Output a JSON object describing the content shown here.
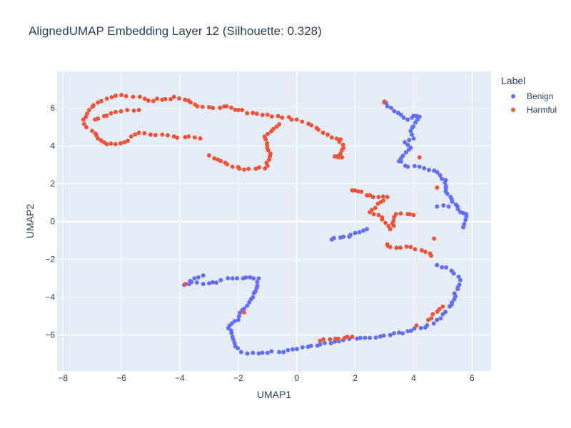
{
  "chart_data": {
    "type": "scatter",
    "title": "AlignedUMAP Embedding Layer 12 (Silhouette: 0.328)",
    "xlabel": "UMAP1",
    "ylabel": "UMAP2",
    "xlim": [
      -8.2,
      6.65
    ],
    "ylim": [
      -7.9,
      7.95
    ],
    "xticks": [
      -8,
      -6,
      -4,
      -2,
      0,
      2,
      4,
      6
    ],
    "yticks": [
      -6,
      -4,
      -2,
      0,
      2,
      4,
      6
    ],
    "grid": true,
    "legend_title": "Label",
    "legend_position": "right",
    "series": [
      {
        "name": "Benign",
        "color": "#636efa",
        "path": [
          [
            3.0,
            6.35
          ],
          [
            3.1,
            6.1
          ],
          [
            3.8,
            5.4
          ],
          [
            4.0,
            5.6
          ],
          [
            4.2,
            5.55
          ],
          [
            3.9,
            4.8
          ],
          [
            4.0,
            4.4
          ],
          [
            3.7,
            4.2
          ],
          [
            3.9,
            3.9
          ],
          [
            3.5,
            3.2
          ],
          [
            3.8,
            2.9
          ],
          [
            4.2,
            2.9
          ],
          [
            4.7,
            2.7
          ],
          [
            5.1,
            2.2
          ],
          [
            5.1,
            1.6
          ],
          [
            5.3,
            1.2
          ],
          [
            5.6,
            0.5
          ],
          [
            5.8,
            0.4
          ],
          [
            5.7,
            -0.3
          ],
          [
            4.8,
            0.8
          ],
          [
            5.2,
            0.8
          ],
          [
            1.2,
            -0.95
          ],
          [
            1.6,
            -0.8
          ],
          [
            2.0,
            -0.6
          ],
          [
            2.4,
            -0.4
          ],
          [
            4.8,
            -2.3
          ],
          [
            5.3,
            -2.6
          ],
          [
            5.6,
            -3.1
          ],
          [
            5.4,
            -3.8
          ],
          [
            5.3,
            -4.4
          ],
          [
            5.0,
            -4.9
          ],
          [
            4.8,
            -5.2
          ],
          [
            4.4,
            -5.6
          ],
          [
            3.8,
            -5.8
          ],
          [
            3.2,
            -6.0
          ],
          [
            2.5,
            -6.15
          ],
          [
            1.8,
            -6.2
          ],
          [
            1.3,
            -6.35
          ],
          [
            0.8,
            -6.5
          ],
          [
            0.2,
            -6.65
          ],
          [
            -0.3,
            -6.8
          ],
          [
            -0.6,
            -6.9
          ],
          [
            -1.0,
            -6.95
          ],
          [
            -1.5,
            -6.95
          ],
          [
            -1.9,
            -6.9
          ],
          [
            -2.1,
            -6.6
          ],
          [
            -2.2,
            -6.1
          ],
          [
            -2.3,
            -5.5
          ],
          [
            -2.0,
            -5.2
          ],
          [
            -1.8,
            -4.6
          ],
          [
            -1.5,
            -4.0
          ],
          [
            -1.35,
            -3.4
          ],
          [
            -1.3,
            -3.0
          ],
          [
            -1.6,
            -2.95
          ],
          [
            -2.2,
            -3.0
          ],
          [
            -2.6,
            -3.1
          ],
          [
            -3.2,
            -3.3
          ],
          [
            -3.6,
            -3.2
          ],
          [
            -3.85,
            -3.35
          ],
          [
            -3.5,
            -3.0
          ],
          [
            -3.2,
            -2.85
          ]
        ]
      },
      {
        "name": "Harmful",
        "color": "#ef553b",
        "path": [
          [
            -7.2,
            5.0
          ],
          [
            -7.3,
            5.4
          ],
          [
            -7.1,
            5.9
          ],
          [
            -6.8,
            6.3
          ],
          [
            -6.5,
            6.5
          ],
          [
            -6.0,
            6.7
          ],
          [
            -5.6,
            6.6
          ],
          [
            -5.2,
            6.5
          ],
          [
            -4.6,
            6.45
          ],
          [
            -4.2,
            6.6
          ],
          [
            -3.7,
            6.4
          ],
          [
            -3.4,
            6.1
          ],
          [
            -3.0,
            6.05
          ],
          [
            -2.4,
            6.1
          ],
          [
            -2.0,
            5.9
          ],
          [
            -1.5,
            5.75
          ],
          [
            -1.0,
            5.65
          ],
          [
            -0.5,
            5.5
          ],
          [
            0.0,
            5.4
          ],
          [
            0.5,
            5.1
          ],
          [
            0.9,
            4.7
          ],
          [
            1.2,
            4.45
          ],
          [
            1.5,
            4.35
          ],
          [
            1.6,
            3.9
          ],
          [
            1.5,
            3.6
          ],
          [
            1.3,
            3.45
          ],
          [
            1.55,
            3.4
          ],
          [
            -7.0,
            4.8
          ],
          [
            -6.8,
            4.4
          ],
          [
            -6.5,
            4.1
          ],
          [
            -6.2,
            4.1
          ],
          [
            -5.9,
            4.2
          ],
          [
            -5.4,
            4.7
          ],
          [
            -5.0,
            4.6
          ],
          [
            -4.6,
            4.6
          ],
          [
            -4.2,
            4.5
          ],
          [
            -3.7,
            4.5
          ],
          [
            -3.3,
            4.4
          ],
          [
            -6.9,
            5.4
          ],
          [
            -6.5,
            5.6
          ],
          [
            -6.2,
            5.8
          ],
          [
            -5.8,
            5.9
          ],
          [
            -5.4,
            5.9
          ],
          [
            -3.0,
            3.5
          ],
          [
            -2.6,
            3.2
          ],
          [
            -2.2,
            2.9
          ],
          [
            -1.8,
            2.75
          ],
          [
            -1.4,
            2.8
          ],
          [
            -1.0,
            2.95
          ],
          [
            -0.9,
            3.6
          ],
          [
            -1.1,
            4.5
          ],
          [
            -0.8,
            4.9
          ],
          [
            -0.6,
            5.15
          ],
          [
            1.9,
            1.65
          ],
          [
            2.1,
            1.6
          ],
          [
            2.5,
            1.4
          ],
          [
            2.8,
            1.3
          ],
          [
            3.1,
            1.3
          ],
          [
            2.5,
            0.5
          ],
          [
            2.8,
            0.35
          ],
          [
            3.2,
            -0.4
          ],
          [
            3.4,
            0.4
          ],
          [
            3.8,
            0.4
          ],
          [
            4.0,
            0.35
          ],
          [
            3.1,
            -1.2
          ],
          [
            3.2,
            -1.35
          ],
          [
            3.9,
            -1.35
          ],
          [
            4.4,
            -1.6
          ],
          [
            4.6,
            -1.8
          ],
          [
            3.0,
            6.3
          ],
          [
            4.2,
            3.4
          ],
          [
            4.8,
            1.8
          ],
          [
            4.7,
            -0.9
          ],
          [
            -3.8,
            -3.3
          ],
          [
            -1.8,
            -4.8
          ],
          [
            0.8,
            -6.3
          ],
          [
            1.9,
            -6.1
          ],
          [
            4.5,
            -5.2
          ],
          [
            5.0,
            -4.5
          ],
          [
            4.1,
            -5.5
          ]
        ]
      }
    ]
  }
}
